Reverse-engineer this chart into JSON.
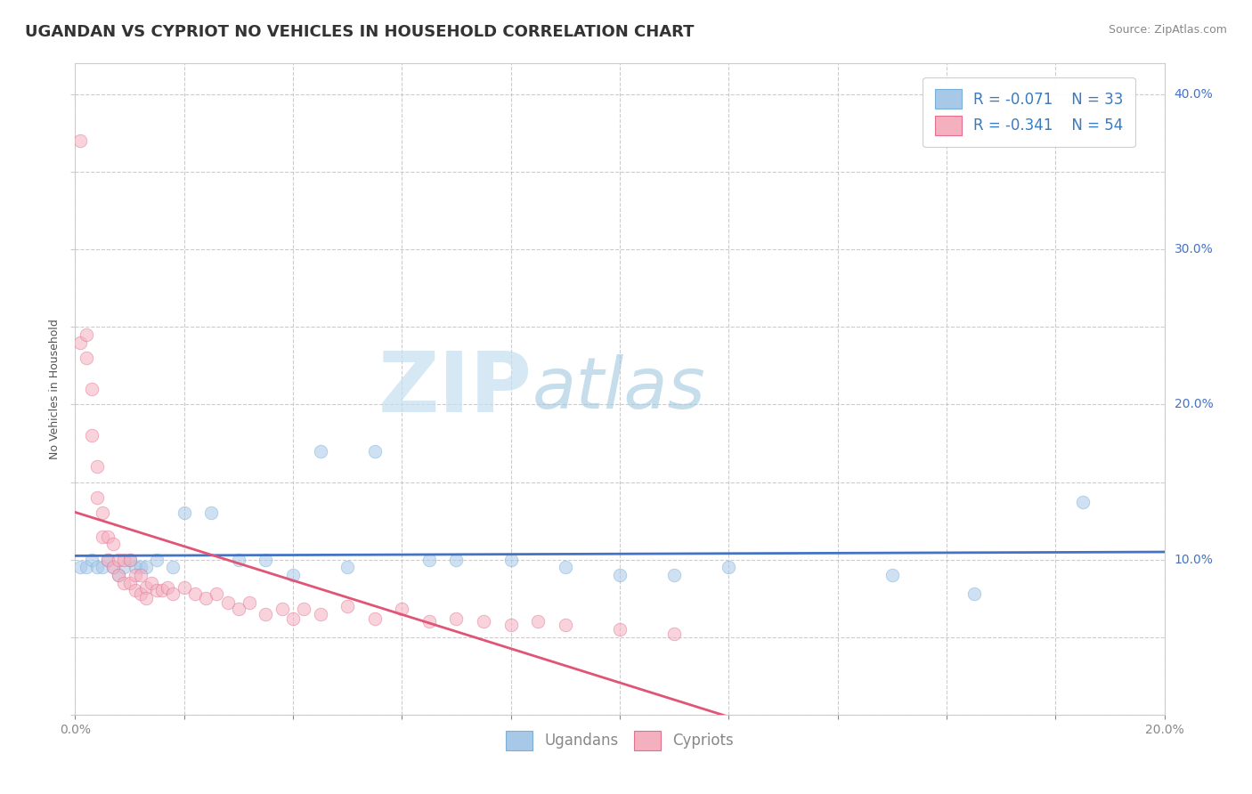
{
  "title": "UGANDAN VS CYPRIOT NO VEHICLES IN HOUSEHOLD CORRELATION CHART",
  "source": "Source: ZipAtlas.com",
  "ylabel": "No Vehicles in Household",
  "xlim": [
    0.0,
    0.2
  ],
  "ylim": [
    0.0,
    0.42
  ],
  "x_ticks": [
    0.0,
    0.02,
    0.04,
    0.06,
    0.08,
    0.1,
    0.12,
    0.14,
    0.16,
    0.18,
    0.2
  ],
  "y_ticks": [
    0.0,
    0.05,
    0.1,
    0.15,
    0.2,
    0.25,
    0.3,
    0.35,
    0.4
  ],
  "watermark_zip": "ZIP",
  "watermark_atlas": "atlas",
  "legend_r1": "R = -0.071",
  "legend_n1": "N = 33",
  "legend_r2": "R = -0.341",
  "legend_n2": "N = 54",
  "ugandan_color": "#a8c8e8",
  "cypriot_color": "#f5b0c0",
  "line_ugandan_color": "#4472c4",
  "line_cypriot_color": "#e05575",
  "title_fontsize": 13,
  "axis_label_fontsize": 9,
  "tick_fontsize": 10,
  "legend_fontsize": 12,
  "source_fontsize": 9,
  "marker_size": 110,
  "marker_alpha": 0.55,
  "background_color": "#ffffff",
  "grid_color": "#c0c0c0",
  "grid_alpha": 0.8,
  "ugandan_x": [
    0.001,
    0.002,
    0.003,
    0.004,
    0.005,
    0.006,
    0.007,
    0.008,
    0.009,
    0.01,
    0.011,
    0.012,
    0.013,
    0.015,
    0.018,
    0.02,
    0.025,
    0.03,
    0.035,
    0.045,
    0.05,
    0.055,
    0.065,
    0.07,
    0.08,
    0.09,
    0.1,
    0.11,
    0.12,
    0.15,
    0.165,
    0.185,
    0.04
  ],
  "ugandan_y": [
    0.095,
    0.095,
    0.1,
    0.095,
    0.095,
    0.1,
    0.095,
    0.09,
    0.095,
    0.1,
    0.095,
    0.095,
    0.095,
    0.1,
    0.095,
    0.13,
    0.13,
    0.1,
    0.1,
    0.17,
    0.095,
    0.17,
    0.1,
    0.1,
    0.1,
    0.095,
    0.09,
    0.09,
    0.095,
    0.09,
    0.078,
    0.137,
    0.09
  ],
  "cypriot_x": [
    0.001,
    0.001,
    0.002,
    0.002,
    0.003,
    0.003,
    0.004,
    0.004,
    0.005,
    0.005,
    0.006,
    0.006,
    0.007,
    0.007,
    0.008,
    0.008,
    0.009,
    0.009,
    0.01,
    0.01,
    0.011,
    0.011,
    0.012,
    0.012,
    0.013,
    0.013,
    0.014,
    0.015,
    0.016,
    0.017,
    0.018,
    0.02,
    0.022,
    0.024,
    0.026,
    0.028,
    0.03,
    0.032,
    0.035,
    0.038,
    0.04,
    0.042,
    0.045,
    0.05,
    0.055,
    0.06,
    0.065,
    0.07,
    0.075,
    0.08,
    0.085,
    0.09,
    0.1,
    0.11
  ],
  "cypriot_y": [
    0.37,
    0.24,
    0.245,
    0.23,
    0.21,
    0.18,
    0.16,
    0.14,
    0.13,
    0.115,
    0.115,
    0.1,
    0.11,
    0.095,
    0.1,
    0.09,
    0.1,
    0.085,
    0.1,
    0.085,
    0.09,
    0.08,
    0.09,
    0.078,
    0.082,
    0.075,
    0.085,
    0.08,
    0.08,
    0.082,
    0.078,
    0.082,
    0.078,
    0.075,
    0.078,
    0.072,
    0.068,
    0.072,
    0.065,
    0.068,
    0.062,
    0.068,
    0.065,
    0.07,
    0.062,
    0.068,
    0.06,
    0.062,
    0.06,
    0.058,
    0.06,
    0.058,
    0.055,
    0.052
  ]
}
